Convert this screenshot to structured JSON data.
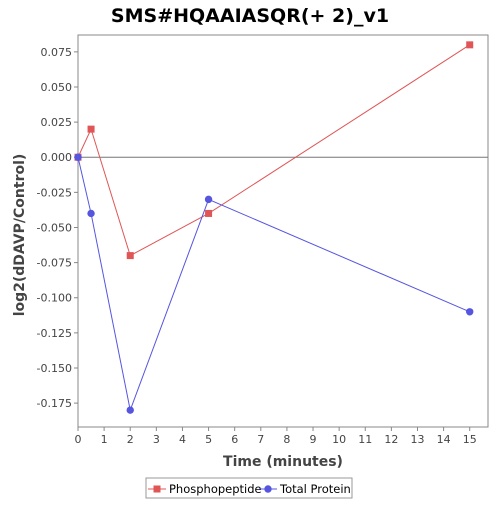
{
  "chart_data": {
    "type": "line",
    "title": "SMS#HQAAIASQR(+ 2)_v1",
    "xlabel": "Time (minutes)",
    "ylabel": "log2(dDAVP/Control)",
    "xlim": [
      0,
      15.7
    ],
    "ylim": [
      -0.192,
      0.087
    ],
    "x_ticks": [
      0,
      1,
      2,
      3,
      4,
      5,
      6,
      7,
      8,
      9,
      10,
      11,
      12,
      13,
      14,
      15
    ],
    "y_ticks": [
      0.075,
      0.05,
      0.025,
      0.0,
      -0.025,
      -0.05,
      -0.075,
      -0.1,
      -0.125,
      -0.15,
      -0.175
    ],
    "y_tick_labels": [
      "0.075",
      "0.050",
      "0.025",
      "0.000",
      "-0.025",
      "-0.050",
      "-0.075",
      "-0.100",
      "-0.125",
      "-0.150",
      "-0.175"
    ],
    "zero_line": true,
    "grid": false,
    "legend_position": "bottom",
    "series": [
      {
        "name": "Phosphopeptide",
        "color": "#e05555",
        "marker": "square",
        "x": [
          0,
          0.5,
          2,
          5,
          15
        ],
        "y": [
          0.0,
          0.02,
          -0.07,
          -0.04,
          0.08
        ]
      },
      {
        "name": "Total Protein",
        "color": "#5555e0",
        "marker": "circle",
        "x": [
          0,
          0.5,
          2,
          5,
          15
        ],
        "y": [
          0.0,
          -0.04,
          -0.18,
          -0.03,
          -0.11
        ]
      }
    ]
  }
}
